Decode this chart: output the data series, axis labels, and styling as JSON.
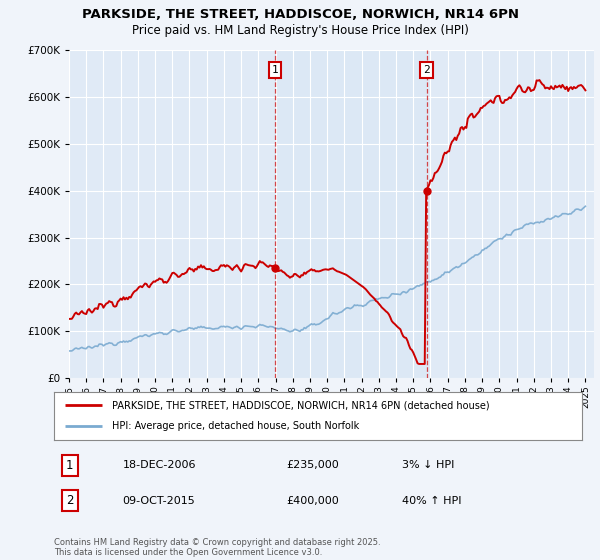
{
  "title_line1": "PARKSIDE, THE STREET, HADDISCOE, NORWICH, NR14 6PN",
  "title_line2": "Price paid vs. HM Land Registry's House Price Index (HPI)",
  "legend_label1": "PARKSIDE, THE STREET, HADDISCOE, NORWICH, NR14 6PN (detached house)",
  "legend_label2": "HPI: Average price, detached house, South Norfolk",
  "annotation1_date": "18-DEC-2006",
  "annotation1_price": "£235,000",
  "annotation1_hpi": "3% ↓ HPI",
  "annotation2_date": "09-OCT-2015",
  "annotation2_price": "£400,000",
  "annotation2_hpi": "40% ↑ HPI",
  "footer": "Contains HM Land Registry data © Crown copyright and database right 2025.\nThis data is licensed under the Open Government Licence v3.0.",
  "sale1_year": 2006.96,
  "sale1_price": 235000,
  "sale2_year": 2015.77,
  "sale2_price": 400000,
  "hpi_color": "#7aaad0",
  "price_color": "#cc0000",
  "vline_color": "#cc0000",
  "shading_color": "#dce8f5",
  "ylim_max": 700000,
  "ylim_min": 0,
  "bg_color": "#f0f4fa",
  "plot_bg_color": "#e0eaf6"
}
